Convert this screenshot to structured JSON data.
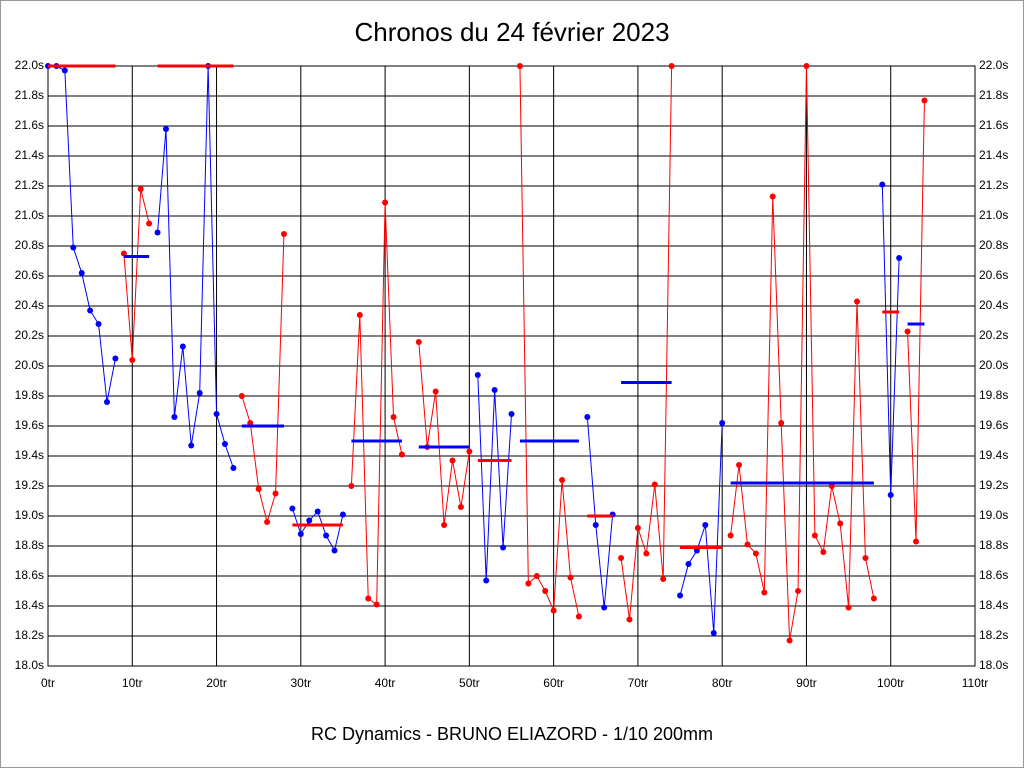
{
  "chart_data": {
    "type": "line",
    "title": "Chronos du 24 février 2023",
    "footer": "RC Dynamics - BRUNO ELIAZORD - 1/10 200mm",
    "xlim": [
      0,
      110
    ],
    "xticks": [
      {
        "value": 0,
        "label": "0tr"
      },
      {
        "value": 10,
        "label": "10tr"
      },
      {
        "value": 20,
        "label": "20tr"
      },
      {
        "value": 30,
        "label": "30tr"
      },
      {
        "value": 40,
        "label": "40tr"
      },
      {
        "value": 50,
        "label": "50tr"
      },
      {
        "value": 60,
        "label": "60tr"
      },
      {
        "value": 70,
        "label": "70tr"
      },
      {
        "value": 80,
        "label": "80tr"
      },
      {
        "value": 90,
        "label": "90tr"
      },
      {
        "value": 100,
        "label": "100tr"
      },
      {
        "value": 110,
        "label": "110tr"
      }
    ],
    "ylim": [
      18.0,
      22.0
    ],
    "yticks": [
      {
        "value": 18.0,
        "label": "18.0s"
      },
      {
        "value": 18.2,
        "label": "18.2s"
      },
      {
        "value": 18.4,
        "label": "18.4s"
      },
      {
        "value": 18.6,
        "label": "18.6s"
      },
      {
        "value": 18.8,
        "label": "18.8s"
      },
      {
        "value": 19.0,
        "label": "19.0s"
      },
      {
        "value": 19.2,
        "label": "19.2s"
      },
      {
        "value": 19.4,
        "label": "19.4s"
      },
      {
        "value": 19.6,
        "label": "19.6s"
      },
      {
        "value": 19.8,
        "label": "19.8s"
      },
      {
        "value": 20.0,
        "label": "20.0s"
      },
      {
        "value": 20.2,
        "label": "20.2s"
      },
      {
        "value": 20.4,
        "label": "20.4s"
      },
      {
        "value": 20.6,
        "label": "20.6s"
      },
      {
        "value": 20.8,
        "label": "20.8s"
      },
      {
        "value": 21.0,
        "label": "21.0s"
      },
      {
        "value": 21.2,
        "label": "21.2s"
      },
      {
        "value": 21.4,
        "label": "21.4s"
      },
      {
        "value": 21.6,
        "label": "21.6s"
      },
      {
        "value": 21.8,
        "label": "21.8s"
      },
      {
        "value": 22.0,
        "label": "22.0s"
      }
    ],
    "grid": true,
    "series": [
      {
        "color": "#0000ff",
        "x": [
          0,
          1,
          2,
          3,
          4,
          5,
          6,
          7,
          8
        ],
        "values": [
          22.0,
          22.0,
          21.97,
          20.79,
          20.62,
          20.37,
          20.28,
          19.76,
          20.05
        ]
      },
      {
        "color": "#ff0000",
        "x": [
          9,
          10,
          11,
          12
        ],
        "values": [
          20.75,
          20.04,
          21.18,
          20.95
        ]
      },
      {
        "color": "#0000ff",
        "x": [
          13,
          14,
          15,
          16,
          17,
          18,
          19,
          20,
          21,
          22
        ],
        "values": [
          20.89,
          21.58,
          19.66,
          20.13,
          19.47,
          19.82,
          22.0,
          19.68,
          19.48,
          19.32
        ]
      },
      {
        "color": "#ff0000",
        "x": [
          23,
          24,
          25,
          26,
          27,
          28
        ],
        "values": [
          19.8,
          19.62,
          19.18,
          18.96,
          19.15,
          20.88
        ]
      },
      {
        "color": "#0000ff",
        "x": [
          29,
          30,
          31,
          32,
          33,
          34,
          35
        ],
        "values": [
          19.05,
          18.88,
          18.97,
          19.03,
          18.87,
          18.77,
          19.01
        ]
      },
      {
        "color": "#ff0000",
        "x": [
          36,
          37,
          38,
          39,
          40,
          41,
          42
        ],
        "values": [
          19.2,
          20.34,
          18.45,
          18.41,
          21.09,
          19.66,
          19.41
        ]
      },
      {
        "color": "#ff0000",
        "x": [
          44,
          45,
          46,
          47,
          48,
          49,
          50
        ],
        "values": [
          20.16,
          19.46,
          19.83,
          18.94,
          19.37,
          19.06,
          19.43
        ]
      },
      {
        "color": "#0000ff",
        "x": [
          51,
          52,
          53,
          54,
          55
        ],
        "values": [
          19.94,
          18.57,
          19.84,
          18.79,
          19.68
        ]
      },
      {
        "color": "#ff0000",
        "x": [
          56,
          57,
          58,
          59,
          60,
          61,
          62,
          63
        ],
        "values": [
          22.0,
          18.55,
          18.6,
          18.5,
          18.37,
          19.24,
          18.59,
          18.33
        ]
      },
      {
        "color": "#0000ff",
        "x": [
          64,
          65,
          66,
          67
        ],
        "values": [
          19.66,
          18.94,
          18.39,
          19.01
        ]
      },
      {
        "color": "#ff0000",
        "x": [
          68,
          69,
          70,
          71,
          72,
          73,
          74
        ],
        "values": [
          18.72,
          18.31,
          18.92,
          18.75,
          19.21,
          18.58,
          22.0
        ]
      },
      {
        "color": "#0000ff",
        "x": [
          75,
          76,
          77,
          78,
          79,
          80
        ],
        "values": [
          18.47,
          18.68,
          18.77,
          18.94,
          18.22,
          19.62
        ]
      },
      {
        "color": "#ff0000",
        "x": [
          81,
          82,
          83,
          84,
          85,
          86,
          87,
          88,
          89,
          90,
          91,
          92,
          93,
          94,
          95,
          96,
          97,
          98
        ],
        "values": [
          18.87,
          19.34,
          18.81,
          18.75,
          18.49,
          21.13,
          19.62,
          18.17,
          18.5,
          22.0,
          18.87,
          18.76,
          19.2,
          18.95,
          18.39,
          20.43,
          18.72,
          18.45
        ]
      },
      {
        "color": "#0000ff",
        "x": [
          99,
          100,
          101
        ],
        "values": [
          21.21,
          19.14,
          20.72
        ]
      },
      {
        "color": "#ff0000",
        "x": [
          102,
          103,
          104
        ],
        "values": [
          20.23,
          18.83,
          21.77
        ]
      }
    ],
    "averages": [
      {
        "color": "#ff0000",
        "x": [
          0,
          8
        ],
        "value": 22.0
      },
      {
        "color": "#0000ff",
        "x": [
          9,
          12
        ],
        "value": 20.73
      },
      {
        "color": "#ff0000",
        "x": [
          13,
          22
        ],
        "value": 22.0
      },
      {
        "color": "#0000ff",
        "x": [
          23,
          28
        ],
        "value": 19.6
      },
      {
        "color": "#ff0000",
        "x": [
          29,
          35
        ],
        "value": 18.94
      },
      {
        "color": "#0000ff",
        "x": [
          36,
          42
        ],
        "value": 19.5
      },
      {
        "color": "#0000ff",
        "x": [
          44,
          50
        ],
        "value": 19.46
      },
      {
        "color": "#ff0000",
        "x": [
          51,
          55
        ],
        "value": 19.37
      },
      {
        "color": "#0000ff",
        "x": [
          56,
          63
        ],
        "value": 19.5
      },
      {
        "color": "#ff0000",
        "x": [
          64,
          67
        ],
        "value": 19.0
      },
      {
        "color": "#0000ff",
        "x": [
          68,
          74
        ],
        "value": 19.89
      },
      {
        "color": "#ff0000",
        "x": [
          75,
          80
        ],
        "value": 18.79
      },
      {
        "color": "#0000ff",
        "x": [
          81,
          98
        ],
        "value": 19.22
      },
      {
        "color": "#ff0000",
        "x": [
          99,
          101
        ],
        "value": 20.36
      },
      {
        "color": "#0000ff",
        "x": [
          102,
          104
        ],
        "value": 20.28
      }
    ]
  }
}
